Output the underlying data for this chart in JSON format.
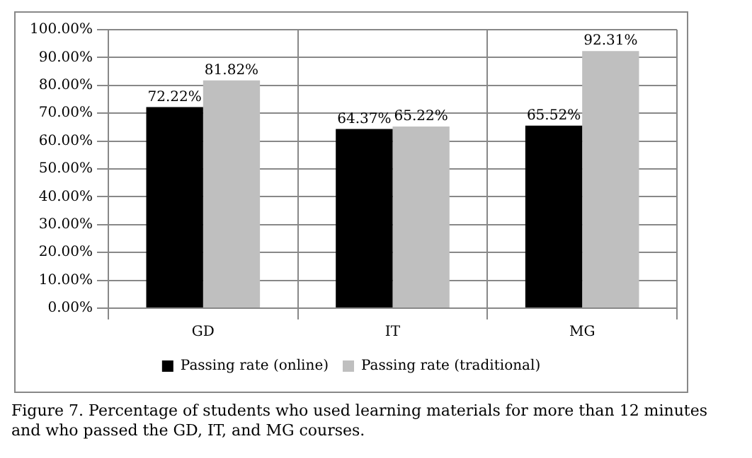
{
  "chart_data": {
    "type": "bar",
    "categories": [
      "GD",
      "IT",
      "MG"
    ],
    "series": [
      {
        "name": "Passing rate (online)",
        "color": "#000000",
        "values": [
          72.22,
          64.37,
          65.52
        ],
        "value_labels": [
          "72.22%",
          "64.37%",
          "65.52%"
        ]
      },
      {
        "name": "Passing rate (traditional)",
        "color": "#bfbfbf",
        "values": [
          81.82,
          65.22,
          92.31
        ],
        "value_labels": [
          "81.82%",
          "65.22%",
          "92.31%"
        ]
      }
    ],
    "ylim": [
      0,
      100
    ],
    "yticks": [
      {
        "value": 0,
        "label": "0.00%"
      },
      {
        "value": 10,
        "label": "10.00%"
      },
      {
        "value": 20,
        "label": "20.00%"
      },
      {
        "value": 30,
        "label": "30.00%"
      },
      {
        "value": 40,
        "label": "40.00%"
      },
      {
        "value": 50,
        "label": "50.00%"
      },
      {
        "value": 60,
        "label": "60.00%"
      },
      {
        "value": 70,
        "label": "70.00%"
      },
      {
        "value": 80,
        "label": "80.00%"
      },
      {
        "value": 90,
        "label": "90.00%"
      },
      {
        "value": 100,
        "label": "100.00%"
      }
    ],
    "grid": true,
    "legend": "bottom",
    "annotations": [
      "Figure 7. Percentage of students who used learning materials for more than 12 minutes and who passed the GD, IT, and MG courses."
    ]
  }
}
